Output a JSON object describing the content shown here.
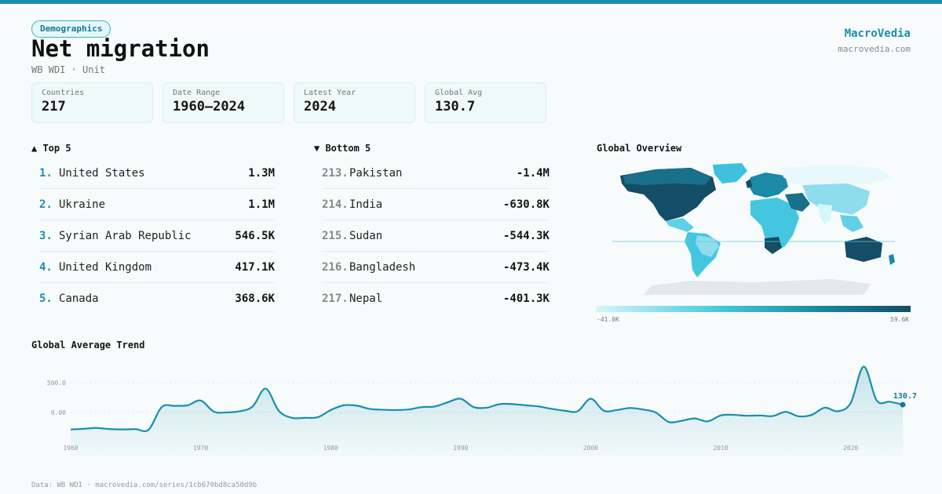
{
  "header": {
    "badge": "Demographics",
    "title": "Net migration",
    "subtitle": "WB WDI · Unit",
    "brand": "MacroVedia",
    "brand_url": "macrovedia.com"
  },
  "stats": [
    {
      "label": "Countries",
      "value": "217"
    },
    {
      "label": "Date Range",
      "value": "1960–2024"
    },
    {
      "label": "Latest Year",
      "value": "2024"
    },
    {
      "label": "Global Avg",
      "value": "130.7"
    }
  ],
  "top5": {
    "title": "▲ Top 5",
    "items": [
      {
        "rank": "1.",
        "name": "United States",
        "value": "1.3M"
      },
      {
        "rank": "2.",
        "name": "Ukraine",
        "value": "1.1M"
      },
      {
        "rank": "3.",
        "name": "Syrian Arab Republic",
        "value": "546.5K"
      },
      {
        "rank": "4.",
        "name": "United Kingdom",
        "value": "417.1K"
      },
      {
        "rank": "5.",
        "name": "Canada",
        "value": "368.6K"
      }
    ]
  },
  "bottom5": {
    "title": "▼ Bottom 5",
    "items": [
      {
        "rank": "213.",
        "name": "Pakistan",
        "value": "-1.4M"
      },
      {
        "rank": "214.",
        "name": "India",
        "value": "-630.8K"
      },
      {
        "rank": "215.",
        "name": "Sudan",
        "value": "-544.3K"
      },
      {
        "rank": "216.",
        "name": "Bangladesh",
        "value": "-473.4K"
      },
      {
        "rank": "217.",
        "name": "Nepal",
        "value": "-401.3K"
      }
    ]
  },
  "map": {
    "title": "Global Overview",
    "scale_min": "-41.0K",
    "scale_max": "59.6K",
    "colors": [
      "#d6f6fb",
      "#44c6e1",
      "#1a8aa6",
      "#134d66"
    ]
  },
  "trend_title": "Global Average Trend",
  "chart_data": {
    "type": "area",
    "title": "Global Average Trend",
    "xlabel": "",
    "ylabel": "",
    "xlim": [
      1960,
      2024
    ],
    "ylim": [
      -600,
      1000
    ],
    "yticks": [
      0,
      500
    ],
    "ytick_labels": [
      "0.00",
      "500.0"
    ],
    "xticks": [
      1960,
      1970,
      1980,
      1990,
      2000,
      2010,
      2020
    ],
    "x": [
      1960,
      1961,
      1962,
      1963,
      1964,
      1965,
      1966,
      1967,
      1968,
      1969,
      1970,
      1971,
      1972,
      1973,
      1974,
      1975,
      1976,
      1977,
      1978,
      1979,
      1980,
      1981,
      1982,
      1983,
      1984,
      1985,
      1986,
      1987,
      1988,
      1989,
      1990,
      1991,
      1992,
      1993,
      1994,
      1995,
      1996,
      1997,
      1998,
      1999,
      2000,
      2001,
      2002,
      2003,
      2004,
      2005,
      2006,
      2007,
      2008,
      2009,
      2010,
      2011,
      2012,
      2013,
      2014,
      2015,
      2016,
      2017,
      2018,
      2019,
      2020,
      2021,
      2022,
      2023,
      2024
    ],
    "values": [
      -285,
      -275,
      -260,
      -280,
      -285,
      -280,
      -290,
      90,
      110,
      120,
      200,
      15,
      0,
      20,
      100,
      400,
      30,
      -90,
      -90,
      -80,
      40,
      120,
      115,
      60,
      45,
      40,
      50,
      90,
      100,
      170,
      230,
      90,
      80,
      140,
      140,
      120,
      100,
      60,
      30,
      20,
      230,
      30,
      40,
      75,
      50,
      0,
      -160,
      -140,
      -100,
      -150,
      -50,
      -40,
      -55,
      -50,
      -60,
      10,
      -65,
      -40,
      80,
      20,
      160,
      770,
      200,
      180,
      130.7
    ],
    "last_label": "130.7",
    "grid": true,
    "color": "#1a8fad"
  },
  "footer": "Data: WB WDI · macrovedia.com/series/1cb670bd8ca50d9b"
}
